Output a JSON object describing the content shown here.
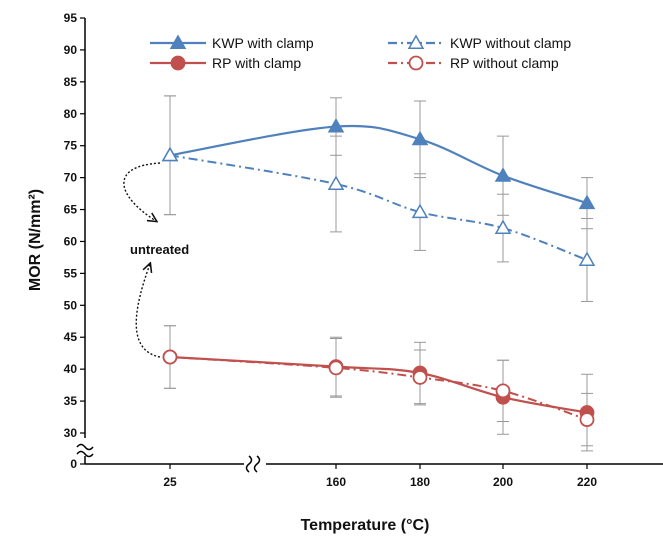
{
  "colors": {
    "kwp": "#4f81bd",
    "rp": "#c0504d",
    "axis": "#000000",
    "error_bar": "#999999"
  },
  "chart_data": {
    "type": "line",
    "xlabel": "Temperature (°C)",
    "ylabel": "MOR (N/mm²)",
    "ylim": [
      0,
      95
    ],
    "y_axis_break": [
      0,
      30
    ],
    "x_axis_break_between": [
      25,
      160
    ],
    "categories": [
      "25",
      "160",
      "180",
      "200",
      "220"
    ],
    "yticks": [
      "0",
      "30",
      "35",
      "40",
      "45",
      "50",
      "55",
      "60",
      "65",
      "70",
      "75",
      "80",
      "85",
      "90",
      "95"
    ],
    "grid": false,
    "legend_position": "top",
    "series": [
      {
        "name": "KWP with clamp",
        "color": "#4f81bd",
        "line": "solid",
        "marker": "triangle-filled",
        "x": [
          25,
          160,
          180,
          200,
          220
        ],
        "values": [
          73.5,
          78.0,
          76.0,
          70.3,
          66.0
        ],
        "error": [
          9.3,
          4.5,
          6.0,
          6.2,
          4.0
        ]
      },
      {
        "name": "KWP without clamp",
        "color": "#4f81bd",
        "line": "dashdot",
        "marker": "triangle-open",
        "x": [
          25,
          160,
          180,
          200,
          220
        ],
        "values": [
          73.5,
          69.0,
          64.6,
          62.1,
          57.1
        ],
        "error": [
          9.3,
          7.5,
          6.0,
          5.3,
          6.5
        ]
      },
      {
        "name": "RP with clamp",
        "color": "#c0504d",
        "line": "solid",
        "marker": "circle-filled",
        "x": [
          25,
          160,
          180,
          200,
          220
        ],
        "values": [
          41.9,
          40.4,
          39.4,
          35.6,
          33.2
        ],
        "error": [
          4.9,
          4.6,
          4.8,
          5.8,
          6.0
        ]
      },
      {
        "name": "RP without clamp",
        "color": "#c0504d",
        "line": "dashdot",
        "marker": "circle-open",
        "x": [
          25,
          160,
          180,
          200,
          220
        ],
        "values": [
          41.9,
          40.2,
          38.7,
          36.6,
          32.1
        ],
        "error": [
          4.9,
          4.6,
          4.3,
          4.8,
          4.1
        ]
      }
    ],
    "annotations": [
      {
        "text": "untreated"
      }
    ]
  }
}
